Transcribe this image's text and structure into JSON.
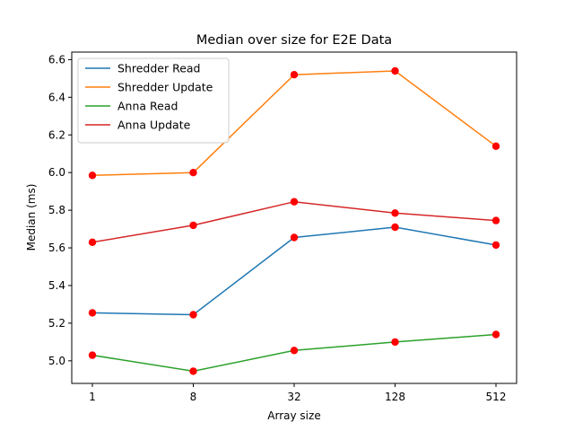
{
  "chart_data": {
    "type": "line",
    "title": "Median over size for E2E Data",
    "xlabel": "Array size",
    "ylabel": "Median (ms)",
    "categories": [
      "1",
      "8",
      "32",
      "128",
      "512"
    ],
    "ylim": [
      4.88,
      6.64
    ],
    "yticks": [
      "5.0",
      "5.2",
      "5.4",
      "5.6",
      "5.8",
      "6.0",
      "6.2",
      "6.4",
      "6.6"
    ],
    "grid": false,
    "legend_position": "top-left",
    "marker_color": "#ff0000",
    "series": [
      {
        "name": "Shredder Read",
        "color": "#1f77b4",
        "values": [
          5.255,
          5.245,
          5.655,
          5.71,
          5.615
        ]
      },
      {
        "name": "Shredder Update",
        "color": "#ff7f0e",
        "values": [
          5.985,
          6.0,
          6.52,
          6.54,
          6.14
        ]
      },
      {
        "name": "Anna Read",
        "color": "#2ca02c",
        "values": [
          5.03,
          4.945,
          5.055,
          5.1,
          5.14
        ]
      },
      {
        "name": "Anna Update",
        "color": "#d62728",
        "values": [
          5.63,
          5.72,
          5.845,
          5.785,
          5.745
        ]
      }
    ]
  }
}
